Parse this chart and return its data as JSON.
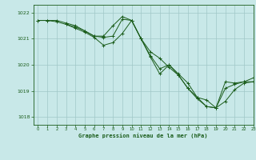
{
  "background_color": "#c8e8e8",
  "grid_color": "#a0c8c8",
  "line_color": "#1a5c1a",
  "title": "Graphe pression niveau de la mer (hPa)",
  "title_color": "#1a5c1a",
  "xlim": [
    -0.5,
    23
  ],
  "ylim": [
    1017.7,
    1022.3
  ],
  "yticks": [
    1018,
    1019,
    1020,
    1021,
    1022
  ],
  "xticks": [
    0,
    1,
    2,
    3,
    4,
    5,
    6,
    7,
    8,
    9,
    10,
    11,
    12,
    13,
    14,
    15,
    16,
    17,
    18,
    19,
    20,
    21,
    22,
    23
  ],
  "series1_x": [
    0,
    1,
    2,
    3,
    4,
    5,
    6,
    7,
    8,
    9,
    10,
    11,
    12,
    13,
    14,
    15,
    16,
    17,
    18,
    19,
    20,
    21,
    22,
    23
  ],
  "series1_y": [
    1021.7,
    1021.7,
    1021.7,
    1021.6,
    1021.5,
    1021.3,
    1021.1,
    1021.1,
    1021.5,
    1021.85,
    1021.7,
    1021.0,
    1020.5,
    1020.25,
    1019.9,
    1019.6,
    1019.1,
    1018.75,
    1018.4,
    1018.35,
    1019.1,
    1019.25,
    1019.35,
    1019.35
  ],
  "series2_x": [
    0,
    1,
    2,
    3,
    4,
    5,
    6,
    7,
    8,
    9,
    10,
    11,
    12,
    13,
    14,
    15,
    16,
    17,
    18,
    19,
    20,
    21,
    22,
    23
  ],
  "series2_y": [
    1021.7,
    1021.7,
    1021.65,
    1021.55,
    1021.4,
    1021.25,
    1021.05,
    1020.75,
    1020.85,
    1021.2,
    1021.7,
    1021.0,
    1020.3,
    1019.65,
    1020.0,
    1019.65,
    1019.3,
    1018.75,
    1018.65,
    1018.35,
    1018.6,
    1019.05,
    1019.3,
    1019.35
  ],
  "series3_x": [
    3,
    4,
    5,
    6,
    7,
    8,
    9,
    10,
    11,
    12,
    13,
    14,
    15,
    16,
    17,
    18,
    19,
    20,
    21,
    22,
    23
  ],
  "series3_y": [
    1021.55,
    1021.45,
    1021.3,
    1021.1,
    1021.05,
    1021.1,
    1021.75,
    1021.7,
    1021.0,
    1020.35,
    1019.85,
    1020.0,
    1019.6,
    1019.1,
    1018.7,
    1018.4,
    1018.35,
    1019.35,
    1019.3,
    1019.35,
    1019.5
  ]
}
